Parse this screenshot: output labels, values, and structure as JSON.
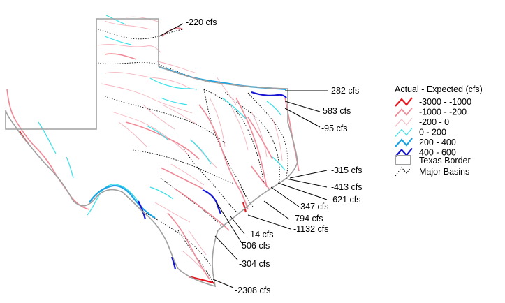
{
  "legend": {
    "title": "Actual - Expected (cfs)",
    "items": [
      {
        "label": "-3000 - -1000",
        "color": "#e8141e",
        "width": 2.2
      },
      {
        "label": "-1000 - -200",
        "color": "#f08896",
        "width": 1.8
      },
      {
        "label": "-200 - 0",
        "color": "#f5b4be",
        "width": 1.0
      },
      {
        "label": "0 - 200",
        "color": "#36e0e8",
        "width": 1.2
      },
      {
        "label": "200 - 400",
        "color": "#1aa4e6",
        "width": 2.2
      },
      {
        "label": "400 - 600",
        "color": "#1414d2",
        "width": 2.2
      }
    ],
    "border_label": "Texas Border",
    "basins_label": "Major Basins"
  },
  "callouts": [
    {
      "text": "-220 cfs"
    },
    {
      "text": "282 cfs"
    },
    {
      "text": "583 cfs"
    },
    {
      "text": "-95 cfs"
    },
    {
      "text": "-315 cfs"
    },
    {
      "text": "-413 cfs"
    },
    {
      "text": "-621 cfs"
    },
    {
      "text": "-347 cfs"
    },
    {
      "text": "-794 cfs"
    },
    {
      "text": "-1132 cfs"
    },
    {
      "text": "-14 cfs"
    },
    {
      "text": "506 cfs"
    },
    {
      "text": "-304 cfs"
    },
    {
      "text": "-2308 cfs"
    }
  ],
  "colors": {
    "border": "#a0a0a0",
    "basins": "#000000",
    "background": "#ffffff"
  }
}
